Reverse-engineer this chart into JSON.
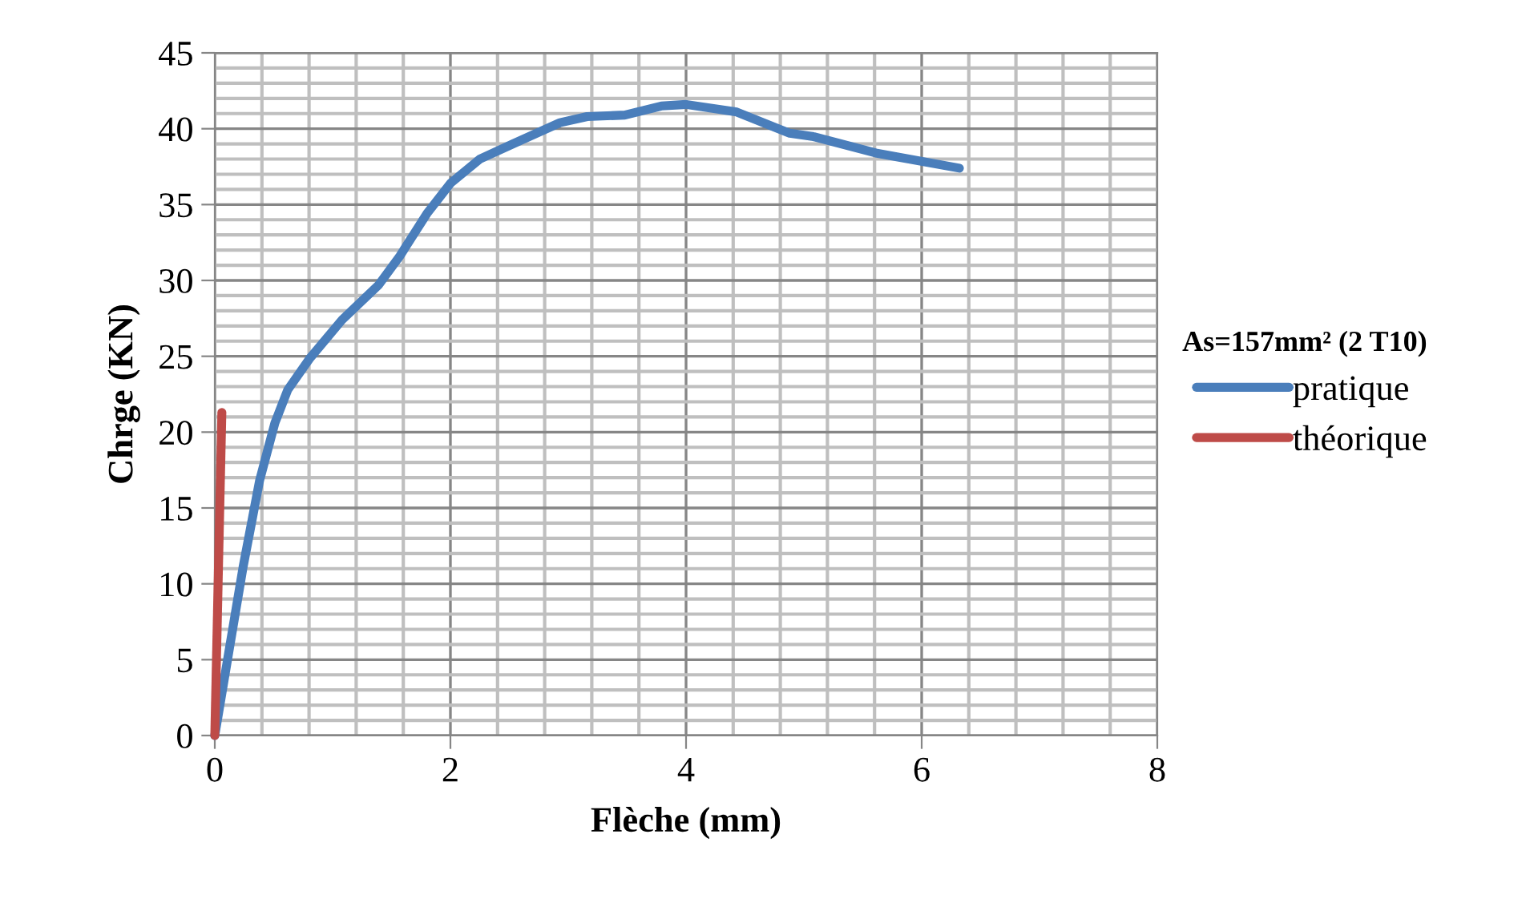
{
  "chart_data": {
    "type": "line",
    "xlabel": "Flèche (mm)",
    "ylabel": "Chrge (KN)",
    "legend_title": "As=157mm² (2 T10)",
    "xlim": [
      0,
      8
    ],
    "xticks": [
      0,
      2,
      4,
      6,
      8
    ],
    "ylim": [
      0,
      45
    ],
    "yticks": [
      0,
      5,
      10,
      15,
      20,
      25,
      30,
      35,
      40,
      45
    ],
    "grid": true,
    "legend": "right",
    "line_style": "solid",
    "series": [
      {
        "name": "pratique",
        "color": "#4a7ebb",
        "x": [
          0,
          0.24,
          0.38,
          0.51,
          0.62,
          0.81,
          1.08,
          1.39,
          1.57,
          1.8,
          2.0,
          2.25,
          2.53,
          2.93,
          3.16,
          3.48,
          3.79,
          4.0,
          4.43,
          4.88,
          5.07,
          5.61,
          6.32
        ],
        "values": [
          0,
          11.1,
          16.8,
          20.6,
          22.8,
          24.9,
          27.4,
          29.7,
          31.6,
          34.4,
          36.4,
          38.0,
          39.0,
          40.4,
          40.8,
          40.9,
          41.5,
          41.6,
          41.1,
          39.7,
          39.5,
          38.4,
          37.4
        ]
      },
      {
        "name": "théorique",
        "color": "#be4b48",
        "x": [
          0,
          0.06
        ],
        "values": [
          0,
          21.3
        ]
      }
    ]
  }
}
